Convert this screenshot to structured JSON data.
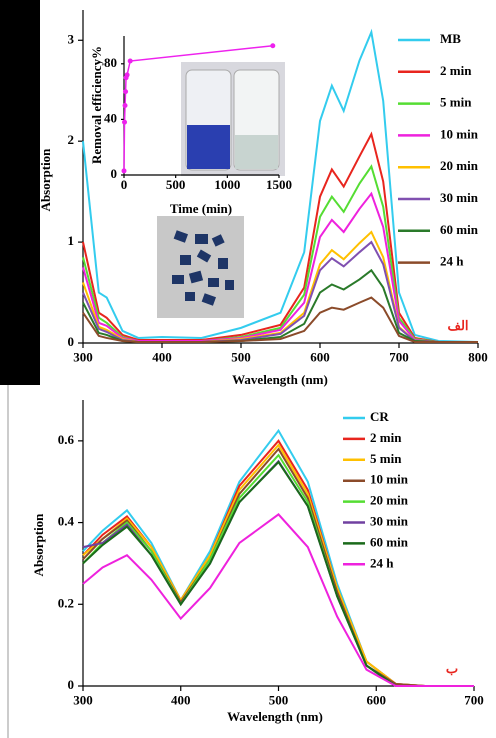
{
  "chart_data": [
    {
      "type": "line",
      "annotation": "الف",
      "xlabel": "Wavelength (nm)",
      "ylabel": "Absorption",
      "xlim": [
        300,
        800
      ],
      "xticks": [
        300,
        400,
        500,
        600,
        700,
        800
      ],
      "ylim": [
        0,
        3.3
      ],
      "yticks": [
        0,
        1,
        2,
        3
      ],
      "x": [
        300,
        320,
        330,
        350,
        370,
        400,
        450,
        500,
        550,
        580,
        600,
        615,
        630,
        650,
        665,
        680,
        700,
        720,
        750,
        800
      ],
      "series": [
        {
          "name": "MB",
          "color": "#33ccee",
          "values": [
            2.0,
            0.5,
            0.45,
            0.12,
            0.05,
            0.06,
            0.05,
            0.15,
            0.3,
            0.9,
            2.2,
            2.55,
            2.3,
            2.8,
            3.08,
            2.4,
            0.5,
            0.08,
            0.02,
            0.01
          ]
        },
        {
          "name": "2 min",
          "color": "#e8251e",
          "values": [
            1.0,
            0.3,
            0.25,
            0.08,
            0.03,
            0.03,
            0.03,
            0.08,
            0.18,
            0.55,
            1.45,
            1.72,
            1.55,
            1.85,
            2.07,
            1.6,
            0.3,
            0.05,
            0.01,
            0.01
          ]
        },
        {
          "name": "5 min",
          "color": "#55dd33",
          "values": [
            0.85,
            0.25,
            0.2,
            0.06,
            0.02,
            0.02,
            0.02,
            0.06,
            0.15,
            0.48,
            1.25,
            1.45,
            1.3,
            1.58,
            1.75,
            1.35,
            0.25,
            0.04,
            0.01,
            0.01
          ]
        },
        {
          "name": "10 min",
          "color": "#ee22dd",
          "values": [
            0.75,
            0.2,
            0.17,
            0.05,
            0.02,
            0.02,
            0.02,
            0.05,
            0.13,
            0.4,
            1.05,
            1.22,
            1.1,
            1.33,
            1.48,
            1.15,
            0.22,
            0.03,
            0.01,
            0.01
          ]
        },
        {
          "name": "20 min",
          "color": "#ffc000",
          "values": [
            0.6,
            0.16,
            0.13,
            0.04,
            0.01,
            0.01,
            0.01,
            0.04,
            0.1,
            0.3,
            0.78,
            0.92,
            0.83,
            0.99,
            1.1,
            0.85,
            0.16,
            0.02,
            0.01,
            0.01
          ]
        },
        {
          "name": "30 min",
          "color": "#8050b0",
          "values": [
            0.5,
            0.14,
            0.11,
            0.03,
            0.01,
            0.01,
            0.01,
            0.03,
            0.09,
            0.27,
            0.72,
            0.84,
            0.76,
            0.9,
            1.0,
            0.78,
            0.15,
            0.02,
            0.01,
            0.01
          ]
        },
        {
          "name": "60 min",
          "color": "#2a7a2a",
          "values": [
            0.4,
            0.1,
            0.08,
            0.02,
            0.01,
            0.01,
            0.01,
            0.02,
            0.06,
            0.19,
            0.5,
            0.58,
            0.53,
            0.63,
            0.72,
            0.55,
            0.1,
            0.02,
            0.01,
            0.01
          ]
        },
        {
          "name": "24 h",
          "color": "#8b4b2a",
          "values": [
            0.3,
            0.07,
            0.05,
            0.02,
            0.01,
            0.01,
            0.01,
            0.02,
            0.04,
            0.12,
            0.3,
            0.35,
            0.33,
            0.4,
            0.45,
            0.35,
            0.07,
            0.01,
            0.01,
            0.01
          ]
        }
      ]
    },
    {
      "type": "line",
      "markers": true,
      "xlabel": "Time (min)",
      "ylabel": "Removal efficiency%",
      "xlim": [
        0,
        1500
      ],
      "xticks": [
        0,
        500,
        1000,
        1500
      ],
      "ylim": [
        0,
        100
      ],
      "yticks": [
        0,
        40,
        80
      ],
      "x": [
        0,
        5,
        10,
        15,
        20,
        30,
        60,
        1440
      ],
      "series": [
        {
          "color": "#ee22ee",
          "values": [
            3,
            38,
            50,
            60,
            70,
            72,
            82,
            93
          ]
        }
      ]
    },
    {
      "type": "line",
      "annotation": "ب",
      "xlabel": "Wavelength (nm)",
      "ylabel": "Absorption",
      "xlim": [
        300,
        700
      ],
      "xticks": [
        300,
        400,
        500,
        600,
        700
      ],
      "ylim": [
        0,
        0.7
      ],
      "yticks": [
        0,
        0.2,
        0.4,
        0.6
      ],
      "x": [
        300,
        320,
        345,
        370,
        400,
        430,
        460,
        500,
        530,
        560,
        590,
        620,
        650,
        700
      ],
      "series": [
        {
          "name": "CR",
          "color": "#33ccee",
          "values": [
            0.33,
            0.38,
            0.43,
            0.35,
            0.21,
            0.33,
            0.5,
            0.625,
            0.5,
            0.25,
            0.06,
            0.005,
            0,
            0
          ]
        },
        {
          "name": "2 min",
          "color": "#e8251e",
          "values": [
            0.32,
            0.37,
            0.415,
            0.34,
            0.21,
            0.32,
            0.49,
            0.6,
            0.48,
            0.24,
            0.06,
            0.005,
            0,
            0
          ]
        },
        {
          "name": "5 min",
          "color": "#ffc000",
          "values": [
            0.32,
            0.36,
            0.41,
            0.34,
            0.21,
            0.32,
            0.48,
            0.59,
            0.47,
            0.24,
            0.06,
            0.005,
            0,
            0
          ]
        },
        {
          "name": "10 min",
          "color": "#8b4b2a",
          "values": [
            0.31,
            0.36,
            0.405,
            0.33,
            0.205,
            0.31,
            0.47,
            0.58,
            0.46,
            0.23,
            0.05,
            0.005,
            0,
            0
          ]
        },
        {
          "name": "20 min",
          "color": "#55dd33",
          "values": [
            0.3,
            0.35,
            0.4,
            0.33,
            0.2,
            0.31,
            0.46,
            0.565,
            0.45,
            0.22,
            0.05,
            0,
            0,
            0
          ]
        },
        {
          "name": "30 min",
          "color": "#7040a0",
          "values": [
            0.34,
            0.35,
            0.395,
            0.32,
            0.2,
            0.3,
            0.45,
            0.55,
            0.44,
            0.22,
            0.05,
            0,
            0,
            0
          ]
        },
        {
          "name": "60 min",
          "color": "#1a6a1a",
          "values": [
            0.3,
            0.345,
            0.39,
            0.32,
            0.2,
            0.3,
            0.45,
            0.548,
            0.44,
            0.22,
            0.05,
            0,
            0,
            0
          ]
        },
        {
          "name": "24 h",
          "color": "#ee22dd",
          "values": [
            0.25,
            0.29,
            0.32,
            0.26,
            0.165,
            0.24,
            0.35,
            0.42,
            0.34,
            0.17,
            0.04,
            0,
            0,
            0
          ]
        }
      ]
    }
  ]
}
